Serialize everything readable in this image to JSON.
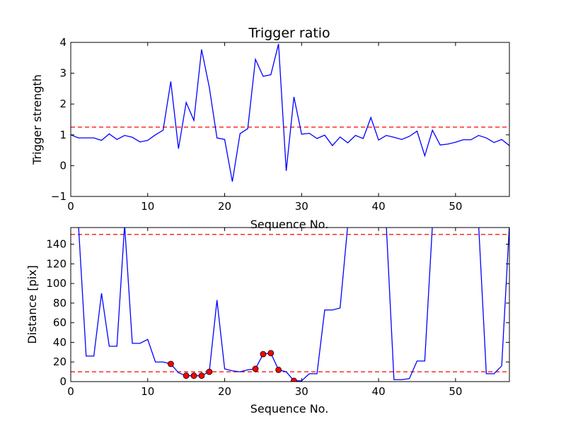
{
  "chart_data": [
    {
      "type": "line",
      "title": "Trigger ratio",
      "xlabel": "Sequence No.",
      "ylabel": "Trigger strength",
      "xlim": [
        0,
        57
      ],
      "ylim": [
        -1,
        4
      ],
      "xticks": [
        0,
        10,
        20,
        30,
        40,
        50
      ],
      "yticks": [
        -1,
        0,
        1,
        2,
        3,
        4
      ],
      "grid": false,
      "series": [
        {
          "color": "#0000ff",
          "x": [
            0,
            1,
            2,
            3,
            4,
            5,
            6,
            7,
            8,
            9,
            10,
            11,
            12,
            13,
            14,
            15,
            16,
            17,
            18,
            19,
            20,
            21,
            22,
            23,
            24,
            25,
            26,
            27,
            28,
            29,
            30,
            31,
            32,
            33,
            34,
            35,
            36,
            37,
            38,
            39,
            40,
            41,
            42,
            43,
            44,
            45,
            46,
            47,
            48,
            49,
            50,
            51,
            52,
            53,
            54,
            55,
            56,
            57
          ],
          "y": [
            1.0,
            0.9,
            0.9,
            0.9,
            0.82,
            1.03,
            0.85,
            0.98,
            0.92,
            0.77,
            0.82,
            1.0,
            1.15,
            2.73,
            0.55,
            2.05,
            1.47,
            3.77,
            2.55,
            0.9,
            0.85,
            -0.52,
            1.04,
            1.2,
            3.45,
            2.9,
            2.95,
            3.95,
            -0.17,
            2.23,
            1.02,
            1.05,
            0.88,
            0.99,
            0.65,
            0.93,
            0.74,
            0.98,
            0.88,
            1.56,
            0.83,
            0.98,
            0.92,
            0.85,
            0.95,
            1.12,
            0.32,
            1.15,
            0.67,
            0.7,
            0.76,
            0.84,
            0.84,
            0.98,
            0.9,
            0.75,
            0.85,
            0.65
          ]
        }
      ],
      "threshold": {
        "value": 1.25,
        "color": "#ff0000",
        "style": "dashed"
      }
    },
    {
      "type": "line",
      "title": "",
      "xlabel": "Sequence No.",
      "ylabel": "Distance [pix]",
      "xlim": [
        0,
        57
      ],
      "ylim": [
        0,
        157
      ],
      "xticks": [
        0,
        10,
        20,
        30,
        40,
        50
      ],
      "yticks": [
        0,
        20,
        40,
        60,
        80,
        100,
        120,
        140
      ],
      "grid": false,
      "series": [
        {
          "color": "#0000ff",
          "x": [
            1,
            2,
            3,
            4,
            5,
            6,
            7,
            8,
            9,
            10,
            11,
            12,
            13,
            14,
            15,
            16,
            17,
            18,
            19,
            20,
            21,
            22,
            23,
            24,
            25,
            26,
            27,
            28,
            29,
            30,
            31,
            32,
            33,
            34,
            35,
            36,
            37,
            41,
            42,
            43,
            44,
            45,
            46,
            47,
            48,
            53,
            54,
            55,
            56,
            57
          ],
          "y": [
            160,
            26,
            26,
            90,
            36,
            36,
            160,
            39,
            39,
            43,
            20,
            20,
            18,
            9,
            6,
            6,
            6,
            10,
            83,
            13,
            11,
            10,
            12,
            13,
            28,
            29,
            12,
            10,
            0.8,
            0.8,
            8,
            8,
            73,
            73,
            75,
            160,
            160,
            160,
            2,
            2,
            3,
            21,
            21,
            160,
            160,
            160,
            8,
            8,
            16,
            160
          ]
        }
      ],
      "markers": {
        "color": "#ff0000",
        "x": [
          13,
          15,
          16,
          17,
          18,
          24,
          25,
          26,
          27,
          29
        ],
        "y": [
          18,
          6,
          6,
          6,
          10,
          13,
          28,
          29,
          12,
          0.8
        ]
      },
      "thresholds": [
        {
          "value": 150,
          "color": "#ff0000",
          "style": "dashed"
        },
        {
          "value": 10,
          "color": "#ff0000",
          "style": "dashed"
        }
      ]
    }
  ]
}
